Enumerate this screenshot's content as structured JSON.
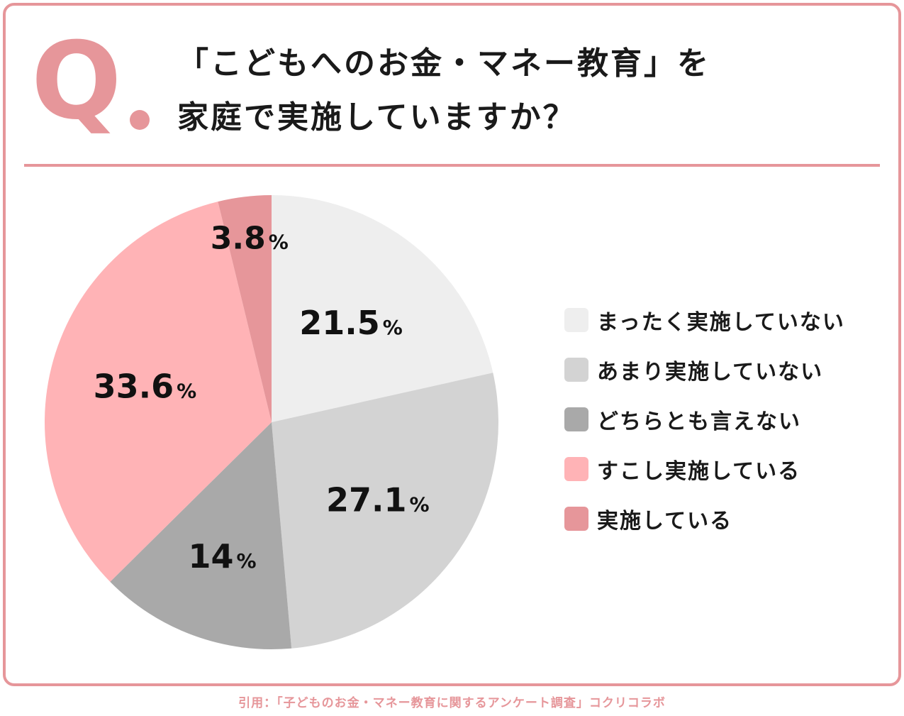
{
  "question": {
    "mark": "Q",
    "line1": "「こどもへのお金・マネー教育」を",
    "line2": "家庭で実施していますか？"
  },
  "colors": {
    "accent": "#e6969a",
    "slices": [
      "#eeeeee",
      "#d3d3d3",
      "#a9a9a9",
      "#ffb3b6",
      "#e6969a"
    ]
  },
  "chart_data": {
    "type": "pie",
    "categories": [
      "まったく実施していない",
      "あまり実施していない",
      "どちらとも言えない",
      "すこし実施している",
      "実施している"
    ],
    "values": [
      21.5,
      27.1,
      14,
      33.6,
      3.8
    ],
    "labels": [
      "21.5",
      "27.1",
      "14",
      "33.6",
      "3.8"
    ],
    "unit": "%",
    "legend_position": "right"
  },
  "source": "引用：「子どものお金・マネー教育に関するアンケート調査」コクリコラボ"
}
